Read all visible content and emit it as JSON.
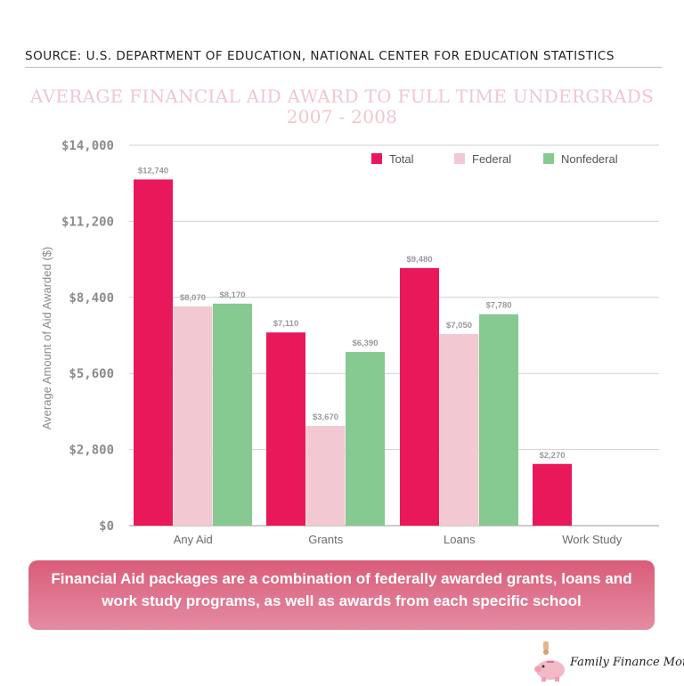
{
  "source": "SOURCE: U.S. DEPARTMENT OF EDUCATION, NATIONAL CENTER FOR EDUCATION STATISTICS",
  "title_line1": "AVERAGE FINANCIAL AID AWARD TO FULL TIME UNDERGRADS",
  "title_line2": "2007 - 2008",
  "banner_text": "Financial Aid packages are a combination of federally awarded grants, loans and work study programs, as well as awards from each specific school",
  "logo_text": "Family Finance Mom",
  "colors": {
    "total": "#e8185a",
    "federal": "#f2c9d2",
    "nonfederal": "#86c991",
    "title": "#f0c7cf"
  },
  "chart_data": {
    "type": "bar",
    "ylabel": "Average Amount of Aid Awarded ($)",
    "xlabel": "",
    "ylim": [
      0,
      14000
    ],
    "yticks": [
      0,
      2800,
      5600,
      8400,
      11200,
      14000
    ],
    "ytick_labels": [
      "$0",
      "$2,800",
      "$5,600",
      "$8,400",
      "$11,200",
      "$14,000"
    ],
    "categories": [
      "Any Aid",
      "Grants",
      "Loans",
      "Work Study"
    ],
    "legend_position": "top-right",
    "series": [
      {
        "name": "Total",
        "color_key": "total",
        "values": [
          12740,
          7110,
          9480,
          2270
        ],
        "labels": [
          "$12,740",
          "$7,110",
          "$9,480",
          "$2,270"
        ]
      },
      {
        "name": "Federal",
        "color_key": "federal",
        "values": [
          8070,
          3670,
          7050,
          null
        ],
        "labels": [
          "$8,070",
          "$3,670",
          "$7,050",
          null
        ]
      },
      {
        "name": "Nonfederal",
        "color_key": "nonfederal",
        "values": [
          8170,
          6390,
          7780,
          null
        ],
        "labels": [
          "$8,170",
          "$6,390",
          "$7,780",
          null
        ]
      }
    ]
  }
}
